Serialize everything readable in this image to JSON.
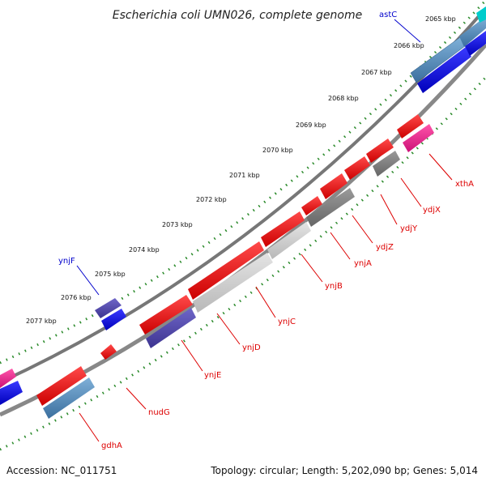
{
  "title": "Escherichia coli UMN026, complete genome",
  "accession": "Accession: NC_011751",
  "topology": "Topology: circular; Length: 5,202,090 bp; Genes: 5,014",
  "kbp_labels": [
    "2065 kbp",
    "2066 kbp",
    "2067 kbp",
    "2068 kbp",
    "2069 kbp",
    "2070 kbp",
    "2071 kbp",
    "2072 kbp",
    "2073 kbp",
    "2074 kbp",
    "2075 kbp",
    "2076 kbp",
    "2077 kbp"
  ],
  "genes_forward": [
    "astC",
    "ynjF"
  ],
  "genes_reverse": [
    "xthA",
    "ydjX",
    "ydjY",
    "ydjZ",
    "ynjA",
    "ynjB",
    "ynjC",
    "ynjD",
    "ynjE",
    "nudG",
    "gdhA"
  ],
  "colors": {
    "forward_label": "#0000cc",
    "reverse_label": "#dd0000",
    "tick_dots": "#2a8a2a",
    "backbone": "#808080",
    "red_gene": "#ee1111",
    "blue_gene": "#0000ee",
    "steel_gene": "#4682b4",
    "grey_gene": "#888888",
    "light_grey_gene": "#cccccc",
    "purple_gene": "#5a4fb0",
    "pink_gene": "#ee2288",
    "cyan_gene": "#00cccc"
  }
}
